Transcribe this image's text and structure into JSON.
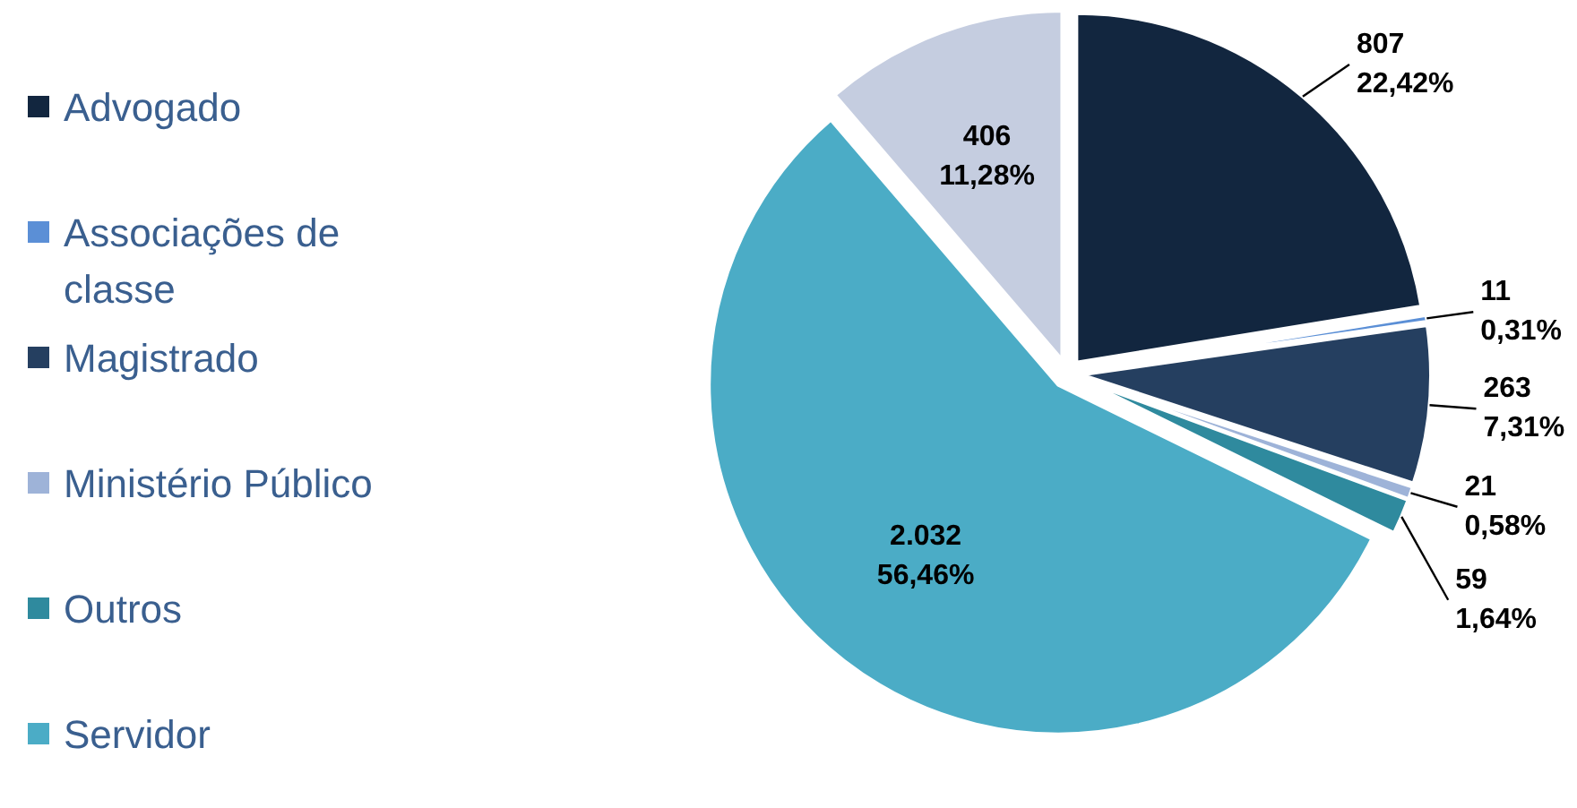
{
  "chart_data": {
    "type": "pie",
    "categories": [
      "Advogado",
      "Associações de classe",
      "Magistrado",
      "Ministério Público",
      "Outros",
      "Servidor",
      null
    ],
    "values": [
      807,
      11,
      263,
      21,
      59,
      2032,
      406
    ],
    "colors": [
      "#12263f",
      "#5b8fd6",
      "#253f60",
      "#9eb3d8",
      "#2f8a9e",
      "#4bacc6",
      "#c5cde0"
    ],
    "value_labels": [
      "807\n22,42%",
      "11\n0,31%",
      "263\n7,31%",
      "21\n0,58%",
      "59\n1,64%",
      "2.032\n56,46%",
      "406\n11,28%"
    ],
    "legend": "left"
  }
}
